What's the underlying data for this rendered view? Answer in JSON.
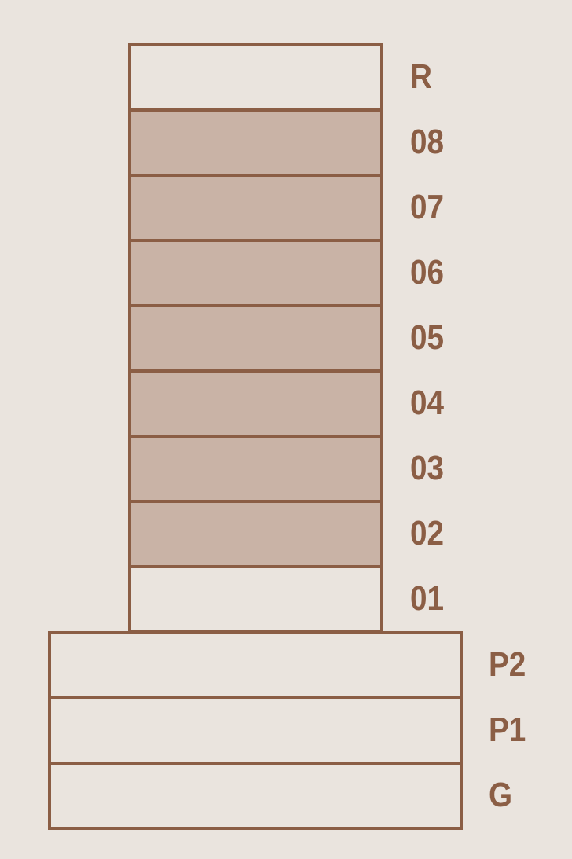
{
  "tower": [
    {
      "label": "R",
      "highlighted": false
    },
    {
      "label": "08",
      "highlighted": true
    },
    {
      "label": "07",
      "highlighted": true
    },
    {
      "label": "06",
      "highlighted": true
    },
    {
      "label": "05",
      "highlighted": true
    },
    {
      "label": "04",
      "highlighted": true
    },
    {
      "label": "03",
      "highlighted": true
    },
    {
      "label": "02",
      "highlighted": true
    },
    {
      "label": "01",
      "highlighted": false
    }
  ],
  "base": [
    {
      "label": "P2",
      "highlighted": false
    },
    {
      "label": "P1",
      "highlighted": false
    },
    {
      "label": "G",
      "highlighted": false
    }
  ]
}
